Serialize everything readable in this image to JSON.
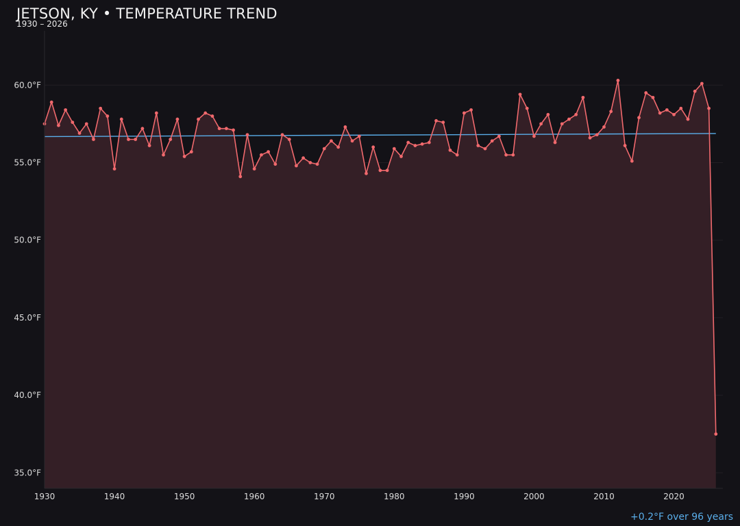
{
  "header": {
    "title": "JETSON, KY • TEMPERATURE TREND",
    "subtitle": "1930 – 2026"
  },
  "footer": {
    "trend_note": "+0.2°F over 96 years"
  },
  "colors": {
    "background": "#131217",
    "series_line": "#f0696d",
    "area_fill": "#341f26",
    "trend_line": "#5aaeea",
    "grid": "#221f24",
    "tick_text": "#dcdcdc"
  },
  "chart_data": {
    "type": "line",
    "title": "JETSON, KY • TEMPERATURE TREND",
    "subtitle": "1930 – 2026",
    "xlabel": "",
    "ylabel": "",
    "xlim": [
      1930,
      2027
    ],
    "ylim": [
      34.0,
      63.5
    ],
    "x_ticks": [
      1930,
      1940,
      1950,
      1960,
      1970,
      1980,
      1990,
      2000,
      2010,
      2020
    ],
    "y_ticks": [
      35,
      40,
      45,
      50,
      55,
      60
    ],
    "y_tick_labels": [
      "35.0°F",
      "40.0°F",
      "45.0°F",
      "50.0°F",
      "55.0°F",
      "60.0°F"
    ],
    "grid": "horizontal",
    "area_fill": true,
    "x": [
      1930,
      1931,
      1932,
      1933,
      1934,
      1935,
      1936,
      1937,
      1938,
      1939,
      1940,
      1941,
      1942,
      1943,
      1944,
      1945,
      1946,
      1947,
      1948,
      1949,
      1950,
      1951,
      1952,
      1953,
      1954,
      1955,
      1956,
      1957,
      1958,
      1959,
      1960,
      1961,
      1962,
      1963,
      1964,
      1965,
      1966,
      1967,
      1968,
      1969,
      1970,
      1971,
      1972,
      1973,
      1974,
      1975,
      1976,
      1977,
      1978,
      1979,
      1980,
      1981,
      1982,
      1983,
      1984,
      1985,
      1986,
      1987,
      1988,
      1989,
      1990,
      1991,
      1992,
      1993,
      1994,
      1995,
      1996,
      1997,
      1998,
      1999,
      2000,
      2001,
      2002,
      2003,
      2004,
      2005,
      2006,
      2007,
      2008,
      2009,
      2010,
      2011,
      2012,
      2013,
      2014,
      2015,
      2016,
      2017,
      2018,
      2019,
      2020,
      2021,
      2022,
      2023,
      2024,
      2025,
      2026
    ],
    "series": [
      {
        "values": [
          57.5,
          58.9,
          57.4,
          58.4,
          57.6,
          56.9,
          57.5,
          56.5,
          58.5,
          58.0,
          54.6,
          57.8,
          56.5,
          56.5,
          57.2,
          56.1,
          58.2,
          55.5,
          56.5,
          57.8,
          55.4,
          55.7,
          57.8,
          58.2,
          58.0,
          57.2,
          57.2,
          57.1,
          54.1,
          56.8,
          54.6,
          55.5,
          55.7,
          54.9,
          56.8,
          56.5,
          54.8,
          55.3,
          55.0,
          54.9,
          55.9,
          56.4,
          56.0,
          57.3,
          56.4,
          56.7,
          54.3,
          56.0,
          54.5,
          54.5,
          55.9,
          55.4,
          56.3,
          56.1,
          56.2,
          56.3,
          57.7,
          57.6,
          55.8,
          55.5,
          58.2,
          58.4,
          56.1,
          55.9,
          56.4,
          56.7,
          55.5,
          55.5,
          59.4,
          58.5,
          56.7,
          57.5,
          58.1,
          56.3,
          57.5,
          57.8,
          58.1,
          59.2,
          56.6,
          56.8,
          57.3,
          58.3,
          60.3,
          56.1,
          55.1,
          57.9,
          59.5,
          59.2,
          58.2,
          58.4,
          58.1,
          58.5,
          57.8,
          59.6,
          60.1,
          58.5,
          37.5
        ]
      }
    ],
    "trend_line": {
      "start": [
        1930,
        56.68
      ],
      "end": [
        2026,
        56.88
      ]
    }
  }
}
